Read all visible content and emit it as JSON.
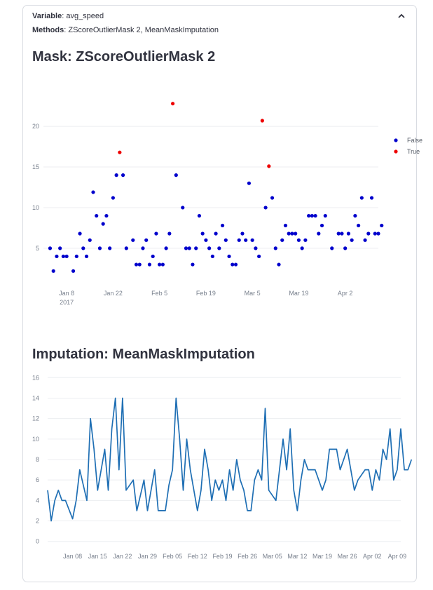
{
  "header": {
    "variable_label": "Variable",
    "variable_value": "avg_speed",
    "methods_label": "Methods",
    "methods_value": "ZScoreOutlierMask 2, MeanMaskImputation"
  },
  "charts": {
    "mask_title": "Mask: ZScoreOutlierMask 2",
    "imputation_title": "Imputation: MeanMaskImputation"
  },
  "chart_data": [
    {
      "type": "scatter",
      "title": "Mask: ZScoreOutlierMask 2",
      "xlabel": "",
      "ylabel": "",
      "x_range": [
        "2017-01-01",
        "2017-04-12"
      ],
      "ylim": [
        0.5,
        24.5
      ],
      "y_ticks": [
        5,
        10,
        15,
        20
      ],
      "x_ticks": [
        {
          "date": "2017-01-08",
          "label": "Jan 8",
          "sublabel": "2017"
        },
        {
          "date": "2017-01-22",
          "label": "Jan 22"
        },
        {
          "date": "2017-02-05",
          "label": "Feb 5"
        },
        {
          "date": "2017-02-19",
          "label": "Feb 19"
        },
        {
          "date": "2017-03-05",
          "label": "Mar 5"
        },
        {
          "date": "2017-03-19",
          "label": "Mar 19"
        },
        {
          "date": "2017-04-02",
          "label": "Apr 2"
        }
      ],
      "grid": true,
      "legend_position": "right",
      "colors": {
        "False": "#0000cc",
        "True": "#ee0000"
      },
      "series": [
        {
          "name": "False",
          "points": [
            [
              "2017-01-03",
              5
            ],
            [
              "2017-01-04",
              2.2
            ],
            [
              "2017-01-05",
              4
            ],
            [
              "2017-01-06",
              5
            ],
            [
              "2017-01-07",
              4
            ],
            [
              "2017-01-08",
              4
            ],
            [
              "2017-01-10",
              2.2
            ],
            [
              "2017-01-11",
              4
            ],
            [
              "2017-01-12",
              6.8
            ],
            [
              "2017-01-13",
              5
            ],
            [
              "2017-01-14",
              4
            ],
            [
              "2017-01-15",
              6
            ],
            [
              "2017-01-16",
              11.9
            ],
            [
              "2017-01-17",
              9
            ],
            [
              "2017-01-18",
              5
            ],
            [
              "2017-01-19",
              8
            ],
            [
              "2017-01-20",
              9
            ],
            [
              "2017-01-21",
              5
            ],
            [
              "2017-01-22",
              11.2
            ],
            [
              "2017-01-23",
              14
            ],
            [
              "2017-01-25",
              14
            ],
            [
              "2017-01-26",
              5
            ],
            [
              "2017-01-28",
              6
            ],
            [
              "2017-01-29",
              3
            ],
            [
              "2017-01-30",
              3
            ],
            [
              "2017-01-31",
              5
            ],
            [
              "2017-02-01",
              6
            ],
            [
              "2017-02-02",
              3
            ],
            [
              "2017-02-03",
              4
            ],
            [
              "2017-02-04",
              6.8
            ],
            [
              "2017-02-05",
              3
            ],
            [
              "2017-02-06",
              3
            ],
            [
              "2017-02-07",
              5
            ],
            [
              "2017-02-08",
              6.8
            ],
            [
              "2017-02-10",
              14
            ],
            [
              "2017-02-12",
              10
            ],
            [
              "2017-02-13",
              5
            ],
            [
              "2017-02-14",
              5
            ],
            [
              "2017-02-15",
              3
            ],
            [
              "2017-02-16",
              5
            ],
            [
              "2017-02-17",
              9
            ],
            [
              "2017-02-18",
              6.8
            ],
            [
              "2017-02-19",
              6
            ],
            [
              "2017-02-20",
              5
            ],
            [
              "2017-02-21",
              4
            ],
            [
              "2017-02-22",
              6.8
            ],
            [
              "2017-02-23",
              5
            ],
            [
              "2017-02-24",
              7.8
            ],
            [
              "2017-02-25",
              6
            ],
            [
              "2017-02-26",
              4
            ],
            [
              "2017-02-27",
              3
            ],
            [
              "2017-02-28",
              3
            ],
            [
              "2017-03-01",
              6
            ],
            [
              "2017-03-02",
              6.8
            ],
            [
              "2017-03-03",
              6
            ],
            [
              "2017-03-04",
              13
            ],
            [
              "2017-03-05",
              6
            ],
            [
              "2017-03-06",
              5
            ],
            [
              "2017-03-07",
              4
            ],
            [
              "2017-03-09",
              10
            ],
            [
              "2017-03-11",
              11.2
            ],
            [
              "2017-03-12",
              5
            ],
            [
              "2017-03-13",
              3
            ],
            [
              "2017-03-14",
              6
            ],
            [
              "2017-03-15",
              7.8
            ],
            [
              "2017-03-16",
              6.8
            ],
            [
              "2017-03-17",
              6.8
            ],
            [
              "2017-03-18",
              6.8
            ],
            [
              "2017-03-19",
              6
            ],
            [
              "2017-03-20",
              5
            ],
            [
              "2017-03-21",
              6
            ],
            [
              "2017-03-22",
              9
            ],
            [
              "2017-03-23",
              9
            ],
            [
              "2017-03-24",
              9
            ],
            [
              "2017-03-25",
              6.8
            ],
            [
              "2017-03-26",
              7.8
            ],
            [
              "2017-03-27",
              9
            ],
            [
              "2017-03-29",
              5
            ],
            [
              "2017-03-31",
              6.8
            ],
            [
              "2017-04-01",
              6.8
            ],
            [
              "2017-04-02",
              5
            ],
            [
              "2017-04-03",
              6.8
            ],
            [
              "2017-04-04",
              6
            ],
            [
              "2017-04-05",
              9
            ],
            [
              "2017-04-06",
              7.8
            ],
            [
              "2017-04-07",
              11.2
            ],
            [
              "2017-04-08",
              6
            ],
            [
              "2017-04-09",
              6.8
            ],
            [
              "2017-04-10",
              11.2
            ],
            [
              "2017-04-11",
              6.8
            ],
            [
              "2017-04-12",
              6.8
            ],
            [
              "2017-04-13",
              7.8
            ]
          ]
        },
        {
          "name": "True",
          "points": [
            [
              "2017-01-24",
              16.8
            ],
            [
              "2017-02-09",
              22.8
            ],
            [
              "2017-03-08",
              20.7
            ],
            [
              "2017-03-10",
              15.1
            ]
          ]
        }
      ]
    },
    {
      "type": "line",
      "title": "Imputation: MeanMaskImputation",
      "xlabel": "",
      "ylabel": "",
      "x_range": [
        "2017-01-01",
        "2017-04-10"
      ],
      "ylim": [
        -0.5,
        16.5
      ],
      "y_ticks": [
        0,
        2,
        4,
        6,
        8,
        10,
        12,
        14,
        16
      ],
      "x_ticks": [
        {
          "date": "2017-01-08",
          "label": "Jan 08"
        },
        {
          "date": "2017-01-15",
          "label": "Jan 15"
        },
        {
          "date": "2017-01-22",
          "label": "Jan 22"
        },
        {
          "date": "2017-01-29",
          "label": "Jan 29"
        },
        {
          "date": "2017-02-05",
          "label": "Feb 05"
        },
        {
          "date": "2017-02-12",
          "label": "Feb 12"
        },
        {
          "date": "2017-02-19",
          "label": "Feb 19"
        },
        {
          "date": "2017-02-26",
          "label": "Feb 26"
        },
        {
          "date": "2017-03-05",
          "label": "Mar 05"
        },
        {
          "date": "2017-03-12",
          "label": "Mar 12"
        },
        {
          "date": "2017-03-19",
          "label": "Mar 19"
        },
        {
          "date": "2017-03-26",
          "label": "Mar 26"
        },
        {
          "date": "2017-04-02",
          "label": "Apr 02"
        },
        {
          "date": "2017-04-09",
          "label": "Apr 09"
        }
      ],
      "grid": true,
      "color": "#1f6fb4",
      "points": [
        [
          "2017-01-01",
          5
        ],
        [
          "2017-01-02",
          2
        ],
        [
          "2017-01-03",
          4
        ],
        [
          "2017-01-04",
          5
        ],
        [
          "2017-01-05",
          4
        ],
        [
          "2017-01-06",
          4
        ],
        [
          "2017-01-08",
          2.2
        ],
        [
          "2017-01-09",
          4
        ],
        [
          "2017-01-10",
          7
        ],
        [
          "2017-01-12",
          4
        ],
        [
          "2017-01-13",
          12
        ],
        [
          "2017-01-14",
          9
        ],
        [
          "2017-01-15",
          5
        ],
        [
          "2017-01-16",
          7
        ],
        [
          "2017-01-17",
          9
        ],
        [
          "2017-01-18",
          5
        ],
        [
          "2017-01-19",
          11
        ],
        [
          "2017-01-20",
          14
        ],
        [
          "2017-01-21",
          7
        ],
        [
          "2017-01-22",
          14
        ],
        [
          "2017-01-23",
          5
        ],
        [
          "2017-01-25",
          6
        ],
        [
          "2017-01-26",
          3
        ],
        [
          "2017-01-28",
          6
        ],
        [
          "2017-01-29",
          3
        ],
        [
          "2017-01-30",
          5
        ],
        [
          "2017-01-31",
          7
        ],
        [
          "2017-02-01",
          3
        ],
        [
          "2017-02-03",
          3
        ],
        [
          "2017-02-04",
          5.5
        ],
        [
          "2017-02-05",
          7
        ],
        [
          "2017-02-06",
          14
        ],
        [
          "2017-02-07",
          10
        ],
        [
          "2017-02-08",
          5
        ],
        [
          "2017-02-09",
          10
        ],
        [
          "2017-02-10",
          7
        ],
        [
          "2017-02-11",
          5
        ],
        [
          "2017-02-12",
          3
        ],
        [
          "2017-02-13",
          5
        ],
        [
          "2017-02-14",
          9
        ],
        [
          "2017-02-15",
          7
        ],
        [
          "2017-02-16",
          4
        ],
        [
          "2017-02-17",
          6
        ],
        [
          "2017-02-18",
          5
        ],
        [
          "2017-02-19",
          6
        ],
        [
          "2017-02-20",
          4
        ],
        [
          "2017-02-21",
          7
        ],
        [
          "2017-02-22",
          5
        ],
        [
          "2017-02-23",
          8
        ],
        [
          "2017-02-24",
          6
        ],
        [
          "2017-02-25",
          5
        ],
        [
          "2017-02-26",
          3
        ],
        [
          "2017-02-27",
          3
        ],
        [
          "2017-02-28",
          6
        ],
        [
          "2017-03-01",
          7
        ],
        [
          "2017-03-02",
          6
        ],
        [
          "2017-03-03",
          13
        ],
        [
          "2017-03-04",
          5
        ],
        [
          "2017-03-06",
          4
        ],
        [
          "2017-03-07",
          7
        ],
        [
          "2017-03-08",
          10
        ],
        [
          "2017-03-09",
          7
        ],
        [
          "2017-03-10",
          11
        ],
        [
          "2017-03-11",
          5
        ],
        [
          "2017-03-12",
          3
        ],
        [
          "2017-03-13",
          6
        ],
        [
          "2017-03-14",
          8
        ],
        [
          "2017-03-15",
          7
        ],
        [
          "2017-03-17",
          7
        ],
        [
          "2017-03-19",
          5
        ],
        [
          "2017-03-20",
          6
        ],
        [
          "2017-03-21",
          9
        ],
        [
          "2017-03-23",
          9
        ],
        [
          "2017-03-24",
          7
        ],
        [
          "2017-03-26",
          9
        ],
        [
          "2017-03-27",
          7
        ],
        [
          "2017-03-28",
          5
        ],
        [
          "2017-03-29",
          6
        ],
        [
          "2017-03-31",
          7
        ],
        [
          "2017-04-01",
          7
        ],
        [
          "2017-04-02",
          5
        ],
        [
          "2017-04-03",
          7
        ],
        [
          "2017-04-04",
          6
        ],
        [
          "2017-04-05",
          9
        ],
        [
          "2017-04-06",
          8
        ],
        [
          "2017-04-07",
          11
        ],
        [
          "2017-04-08",
          6
        ],
        [
          "2017-04-09",
          7
        ],
        [
          "2017-04-10",
          11
        ],
        [
          "2017-04-11",
          7
        ],
        [
          "2017-04-12",
          7
        ],
        [
          "2017-04-13",
          8
        ]
      ]
    }
  ]
}
